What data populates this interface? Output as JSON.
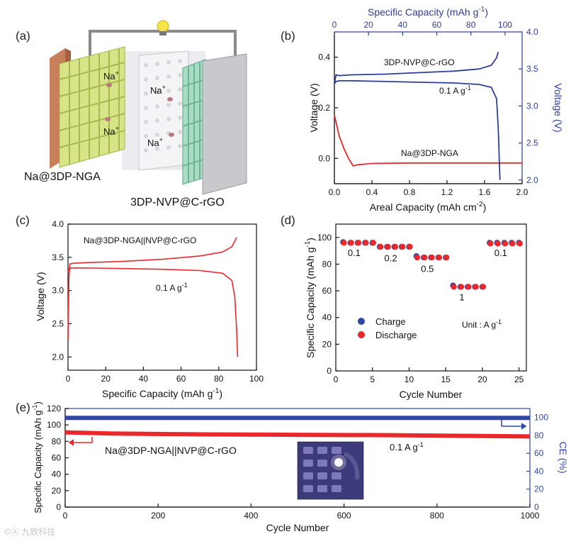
{
  "panels": {
    "a": {
      "label": "(a)",
      "na_ion": "Na",
      "na_sup": "+",
      "anode_label": "Na@3DP-NGA",
      "cathode_label": "3DP-NVP@C-rGO"
    }
  },
  "watermark": "©Ⓐ 九致科技",
  "chart_data": [
    {
      "id": "b",
      "type": "line",
      "label": "(b)",
      "xlabel": "Areal Capacity (mAh cm",
      "xlabel_sup": "-2",
      "xlabel_end": ")",
      "ylabel": "Voltage (V)",
      "x2label": "Specific Capacity (mAh g",
      "x2label_sup": "-1",
      "x2label_end": ")",
      "y2label": "Voltage (V)",
      "xlim": [
        0,
        2.0
      ],
      "ylim": [
        -0.1,
        0.5
      ],
      "x2lim": [
        0,
        110
      ],
      "y2lim": [
        1.95,
        4.0
      ],
      "xticks": [
        "0.0",
        "0.4",
        "0.8",
        "1.2",
        "1.6",
        "2.0"
      ],
      "yticks": [
        "0.0",
        "0.2",
        "0.4"
      ],
      "x2ticks": [
        "0",
        "20",
        "40",
        "60",
        "80",
        "100"
      ],
      "y2ticks": [
        "2.0",
        "2.5",
        "3.0",
        "3.5",
        "4.0"
      ],
      "colors": {
        "anode": "#e8282b",
        "cathode": "#2d3e9a"
      },
      "annotations": {
        "cathode": "3DP-NVP@C-rGO",
        "rate": "0.1 A g",
        "rate_sup": "-1",
        "anode": "Na@3DP-NGA"
      },
      "series": [
        {
          "name": "Na@3DP-NGA",
          "axis": "primary",
          "x": [
            0.0,
            0.02,
            0.05,
            0.1,
            0.15,
            0.2,
            0.25,
            0.4,
            0.8,
            1.2,
            1.6,
            2.0
          ],
          "y": [
            0.17,
            0.14,
            0.09,
            0.04,
            0.0,
            -0.03,
            -0.025,
            -0.02,
            -0.018,
            -0.018,
            -0.018,
            -0.018
          ]
        },
        {
          "name": "NVP charge",
          "axis": "secondary",
          "x": [
            0,
            1,
            3,
            10,
            30,
            50,
            70,
            85,
            92,
            95,
            96
          ],
          "y": [
            3.3,
            3.42,
            3.41,
            3.42,
            3.43,
            3.45,
            3.47,
            3.5,
            3.55,
            3.65,
            3.73
          ]
        },
        {
          "name": "NVP discharge",
          "axis": "secondary",
          "x": [
            0,
            1,
            3,
            10,
            30,
            50,
            70,
            85,
            92,
            95,
            96,
            97
          ],
          "y": [
            3.3,
            3.33,
            3.34,
            3.34,
            3.33,
            3.32,
            3.31,
            3.29,
            3.25,
            3.1,
            2.7,
            2.0
          ]
        }
      ]
    },
    {
      "id": "c",
      "type": "line",
      "label": "(c)",
      "xlabel": "Specific Capacity (mAh g",
      "xlabel_sup": "-1",
      "xlabel_end": ")",
      "ylabel": "Voltage (V)",
      "xlim": [
        0,
        100
      ],
      "ylim": [
        1.8,
        4.0
      ],
      "xticks": [
        "0",
        "20",
        "40",
        "60",
        "80",
        "100"
      ],
      "yticks": [
        "2.0",
        "2.5",
        "3.0",
        "3.5",
        "4.0"
      ],
      "color": "#e8282b",
      "annotations": {
        "cell": "Na@3DP-NGA||NVP@C-rGO",
        "rate": "0.1 A g",
        "rate_sup": "-1"
      },
      "series": [
        {
          "name": "charge",
          "x": [
            0,
            0.5,
            1,
            3,
            10,
            30,
            50,
            70,
            82,
            87,
            89.5
          ],
          "y": [
            2.25,
            3.2,
            3.4,
            3.41,
            3.42,
            3.44,
            3.47,
            3.52,
            3.58,
            3.66,
            3.8
          ]
        },
        {
          "name": "discharge",
          "x": [
            0,
            0.5,
            1,
            3,
            10,
            30,
            50,
            70,
            82,
            87,
            88.5,
            89.5,
            90
          ],
          "y": [
            3.28,
            3.33,
            3.34,
            3.34,
            3.34,
            3.33,
            3.32,
            3.3,
            3.26,
            3.15,
            2.9,
            2.4,
            2.0
          ]
        }
      ]
    },
    {
      "id": "d",
      "type": "scatter",
      "label": "(d)",
      "xlabel": "Cycle Number",
      "ylabel": "Specific Capacity (mAh g",
      "ylabel_sup": "-1",
      "ylabel_end": ")",
      "xlim": [
        0,
        26
      ],
      "ylim": [
        0,
        110
      ],
      "xticks": [
        "0",
        "5",
        "10",
        "15",
        "20",
        "25"
      ],
      "yticks": [
        "0",
        "20",
        "40",
        "60",
        "80",
        "100"
      ],
      "legend": {
        "charge": "Charge",
        "discharge": "Discharge"
      },
      "colors": {
        "charge": "#2f47a8",
        "discharge": "#e8282b"
      },
      "unit_note": "Unit : A g",
      "unit_sup": "-1",
      "rate_labels": [
        {
          "text": "0.1",
          "x": 2.5,
          "y": 86
        },
        {
          "text": "0.2",
          "x": 7.5,
          "y": 82
        },
        {
          "text": "0.5",
          "x": 12.5,
          "y": 74
        },
        {
          "text": "1",
          "x": 17.2,
          "y": 53
        },
        {
          "text": "0.1",
          "x": 22.5,
          "y": 86
        }
      ],
      "series": [
        {
          "name": "Charge",
          "x": [
            1,
            2,
            3,
            4,
            5,
            6,
            7,
            8,
            9,
            10,
            11,
            12,
            13,
            14,
            15,
            16,
            17,
            18,
            19,
            20,
            21,
            22,
            23,
            24,
            25
          ],
          "y": [
            96.5,
            96,
            96,
            96,
            96,
            93,
            93,
            93,
            93,
            93,
            86,
            85,
            85,
            85,
            85,
            64,
            63,
            63,
            63,
            63,
            96,
            96,
            96,
            96,
            96
          ]
        },
        {
          "name": "Discharge",
          "x": [
            1,
            2,
            3,
            4,
            5,
            6,
            7,
            8,
            9,
            10,
            11,
            12,
            13,
            14,
            15,
            16,
            17,
            18,
            19,
            20,
            21,
            22,
            23,
            24,
            25
          ],
          "y": [
            96,
            96,
            96,
            96,
            96,
            93,
            93,
            93,
            93,
            93,
            85,
            85,
            85,
            85,
            85,
            63,
            63,
            63,
            63,
            63,
            95.5,
            95.5,
            95.5,
            95.5,
            95.5
          ]
        }
      ]
    },
    {
      "id": "e",
      "type": "scatter",
      "label": "(e)",
      "xlabel": "Cycle Number",
      "ylabel": "Specific Capacity (mAh g",
      "ylabel_sup": "-1",
      "ylabel_end": ")",
      "y2label": "CE (%)",
      "xlim": [
        0,
        1000
      ],
      "ylim": [
        0,
        120
      ],
      "y2lim": [
        0,
        110
      ],
      "xticks": [
        "0",
        "200",
        "400",
        "600",
        "800",
        "1000"
      ],
      "yticks": [
        "0",
        "20",
        "40",
        "60",
        "80",
        "100",
        "120"
      ],
      "y2ticks": [
        "0",
        "20",
        "40",
        "60",
        "80",
        "100"
      ],
      "colors": {
        "capacity": "#e8282b",
        "ce": "#2f47a8"
      },
      "annotations": {
        "cell": "Na@3DP-NGA||NVP@C-rGO",
        "rate": "0.1 A g",
        "rate_sup": "-1"
      },
      "series": [
        {
          "name": "Specific Capacity",
          "axis": "primary",
          "x": [
            0,
            100,
            300,
            500,
            700,
            900,
            1000
          ],
          "y": [
            91,
            89.5,
            88.5,
            88,
            87.5,
            86.5,
            86
          ]
        },
        {
          "name": "CE",
          "axis": "secondary",
          "x": [
            0,
            1000
          ],
          "y": [
            99.5,
            99.5
          ]
        }
      ]
    }
  ]
}
